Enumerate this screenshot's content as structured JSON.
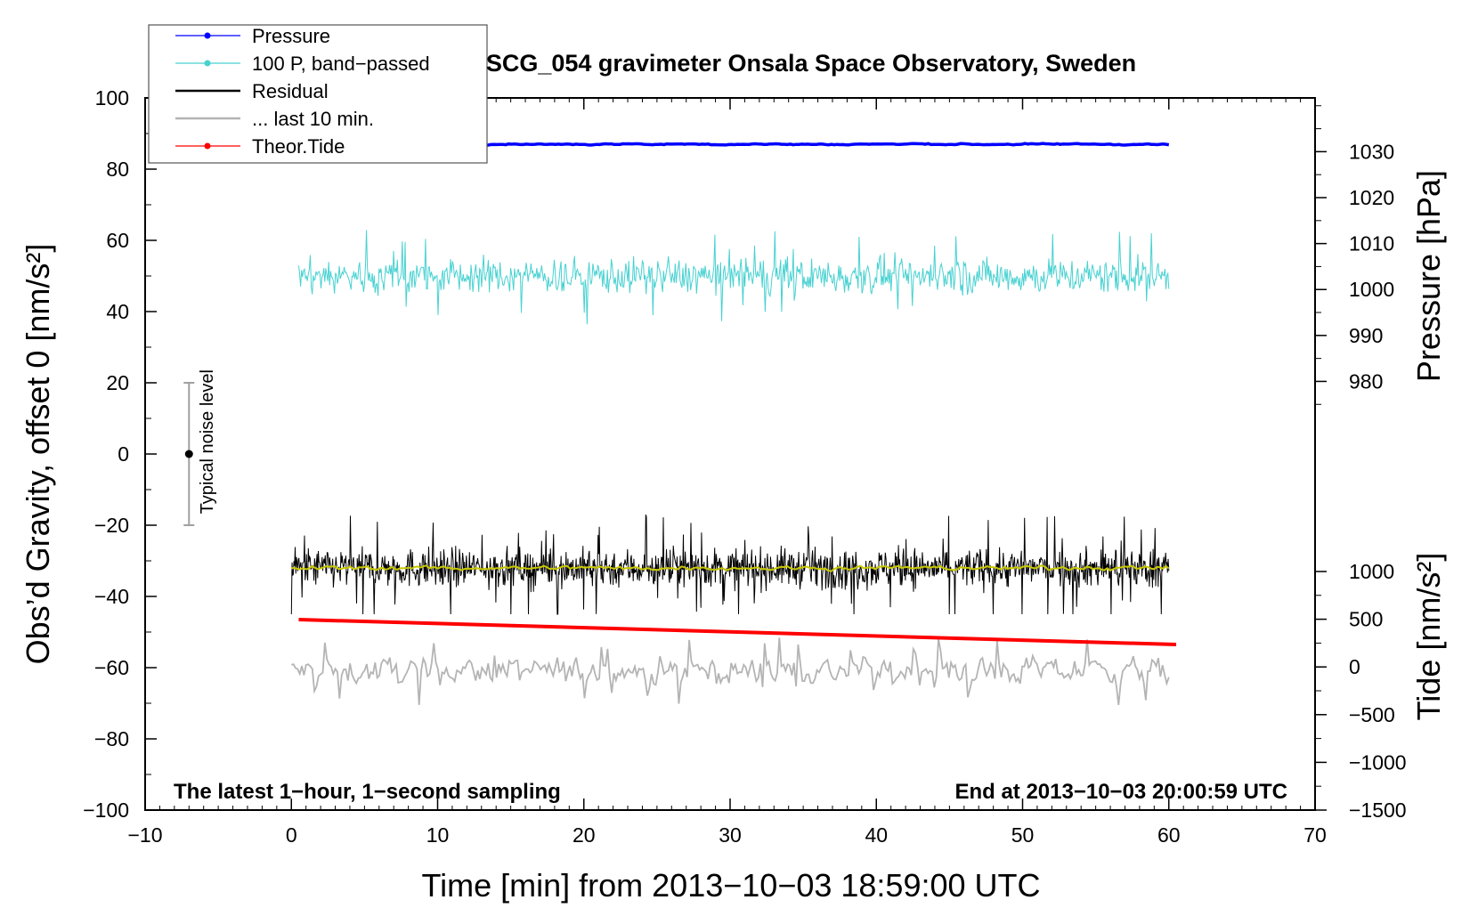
{
  "chart_data": {
    "type": "line",
    "title": "SCG_054 gravimeter Onsala Space Observatory, Sweden",
    "xlabel": "Time [min] from 2013−10−03 18:59:00 UTC",
    "ylabel_left": "Obs’d Gravity, offset 0 [nm/s²]",
    "ylabel_right_pressure": "Pressure [hPa]",
    "ylabel_right_tide": "Tide [nm/s²]",
    "footer_left": "The latest 1−hour, 1−second sampling",
    "footer_right": "End at 2013−10−03 20:00:59 UTC",
    "xlim": [
      -10,
      70
    ],
    "ylim": [
      -100,
      100
    ],
    "x_ticks": [
      "−10",
      "0",
      "10",
      "20",
      "30",
      "40",
      "50",
      "60",
      "70"
    ],
    "x_tick_values": [
      -10,
      0,
      10,
      20,
      30,
      40,
      50,
      60,
      70
    ],
    "y_ticks": [
      "100",
      "80",
      "60",
      "40",
      "20",
      "0",
      "−20",
      "−40",
      "−60",
      "−80",
      "−100"
    ],
    "y_tick_values": [
      100,
      80,
      60,
      40,
      20,
      0,
      -20,
      -40,
      -60,
      -80,
      -100
    ],
    "pressure_ticks": [
      "1030",
      "1020",
      "1010",
      "1000",
      "990",
      "980"
    ],
    "pressure_tick_values": [
      1030,
      1020,
      1010,
      1000,
      990,
      980
    ],
    "pressure_scale": {
      "value_at_y100": 1041.7,
      "hpa_per_nms2": 0.775
    },
    "tide_ticks": [
      "1000",
      "500",
      "0",
      "−500",
      "−1000",
      "−1500"
    ],
    "tide_tick_values": [
      1000,
      500,
      0,
      -500,
      -1000,
      -1500
    ],
    "tide_scale": {
      "value_at_y_minus100": -1500,
      "value_at_y_minus33": 1000
    },
    "typical_noise": {
      "x": -7,
      "center": 0,
      "half_range": 20,
      "label": "Typical noise level"
    },
    "grid": false,
    "legend_position": "top-left",
    "series": [
      {
        "name": "Pressure",
        "color": "#0000ff",
        "style": "line-dot",
        "x_range": [
          0,
          60
        ],
        "approx_y": 87,
        "amplitude": 0.5
      },
      {
        "name": "100 P, band−passed",
        "color": "#48d1d1",
        "style": "line-dot",
        "x_range": [
          0.5,
          60
        ],
        "approx_y": 50,
        "amplitude": 5,
        "extremes": [
          27,
          63
        ]
      },
      {
        "name": "Residual",
        "color": "#000000",
        "style": "line",
        "x_range": [
          0,
          60
        ],
        "approx_y": -32,
        "amplitude": 5,
        "extremes": [
          -45,
          -17
        ]
      },
      {
        "name": "... last 10 min.",
        "color": "#b4b4b4",
        "style": "line",
        "x_range": [
          0,
          60
        ],
        "approx_y": -61,
        "amplitude": 5,
        "extremes": [
          -73,
          -48
        ]
      },
      {
        "name": "Theor.Tide",
        "color": "#ff0000",
        "style": "line-dot",
        "x": [
          0.5,
          60.5
        ],
        "y": [
          -46.5,
          -53.5
        ]
      },
      {
        "name": "",
        "color": "#c8c800",
        "style": "line",
        "x_range": [
          0,
          60
        ],
        "approx_y": -32,
        "amplitude": 1
      }
    ]
  }
}
